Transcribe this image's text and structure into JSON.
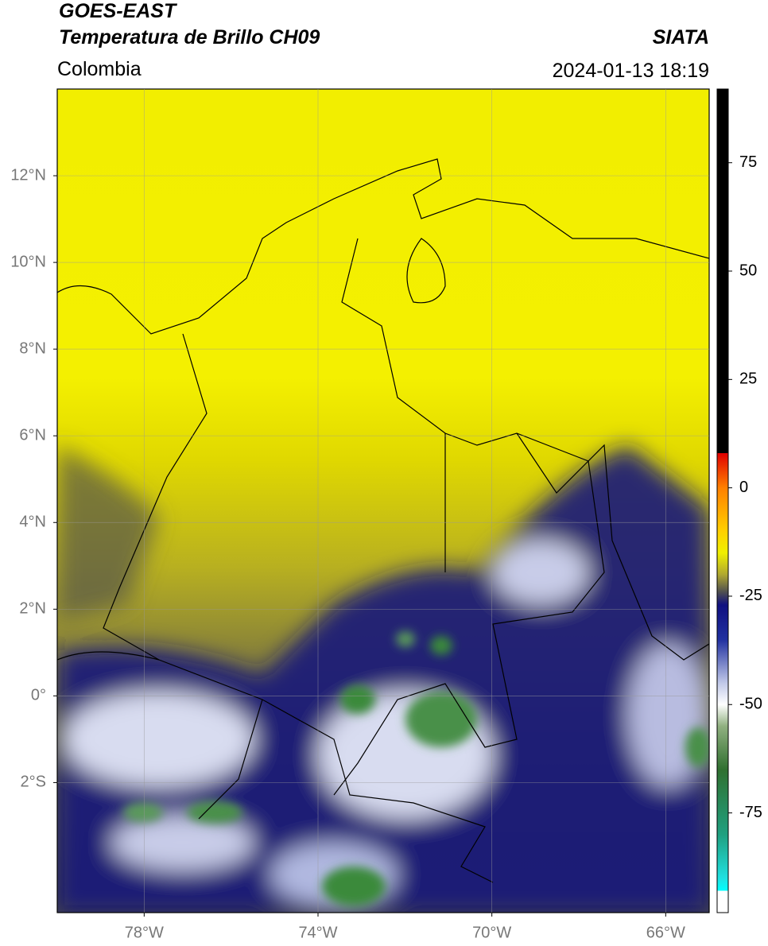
{
  "header": {
    "satellite": "GOES-EAST",
    "product": "Temperatura de Brillo CH09",
    "source": "SIATA",
    "region": "Colombia",
    "datetime": "2024-01-13 18:19"
  },
  "map": {
    "xlim": [
      -80,
      -65
    ],
    "ylim": [
      -5,
      14
    ],
    "grid": true,
    "xticks": [
      {
        "value": -78,
        "label": "78°W"
      },
      {
        "value": -74,
        "label": "74°W"
      },
      {
        "value": -70,
        "label": "70°W"
      },
      {
        "value": -66,
        "label": "66°W"
      }
    ],
    "yticks": [
      {
        "value": 12,
        "label": "12°N"
      },
      {
        "value": 10,
        "label": "10°N"
      },
      {
        "value": 8,
        "label": "8°N"
      },
      {
        "value": 6,
        "label": "6°N"
      },
      {
        "value": 4,
        "label": "4°N"
      },
      {
        "value": 2,
        "label": "2°N"
      },
      {
        "value": 0,
        "label": "0°"
      },
      {
        "value": -2,
        "label": "2°S"
      }
    ]
  },
  "colorbar": {
    "lim": [
      -98,
      92
    ],
    "ticks": [
      75,
      50,
      25,
      0,
      -25,
      -50,
      -75
    ],
    "stops": [
      {
        "value": 92,
        "color": "#000000"
      },
      {
        "value": 8,
        "color": "#000000"
      },
      {
        "value": 8,
        "color": "#e00000"
      },
      {
        "value": 0,
        "color": "#ff8000"
      },
      {
        "value": -10,
        "color": "#ffd000"
      },
      {
        "value": -15,
        "color": "#f0f000"
      },
      {
        "value": -20,
        "color": "#b0a830"
      },
      {
        "value": -24,
        "color": "#505050"
      },
      {
        "value": -27,
        "color": "#101080"
      },
      {
        "value": -35,
        "color": "#2030a0"
      },
      {
        "value": -45,
        "color": "#c0c8e8"
      },
      {
        "value": -50,
        "color": "#ffffff"
      },
      {
        "value": -55,
        "color": "#90b080"
      },
      {
        "value": -65,
        "color": "#307030"
      },
      {
        "value": -80,
        "color": "#20a080"
      },
      {
        "value": -90,
        "color": "#20e0e0"
      },
      {
        "value": -93,
        "color": "#00ffff"
      },
      {
        "value": -93,
        "color": "#ffffff"
      },
      {
        "value": -98,
        "color": "#ffffff"
      }
    ]
  }
}
